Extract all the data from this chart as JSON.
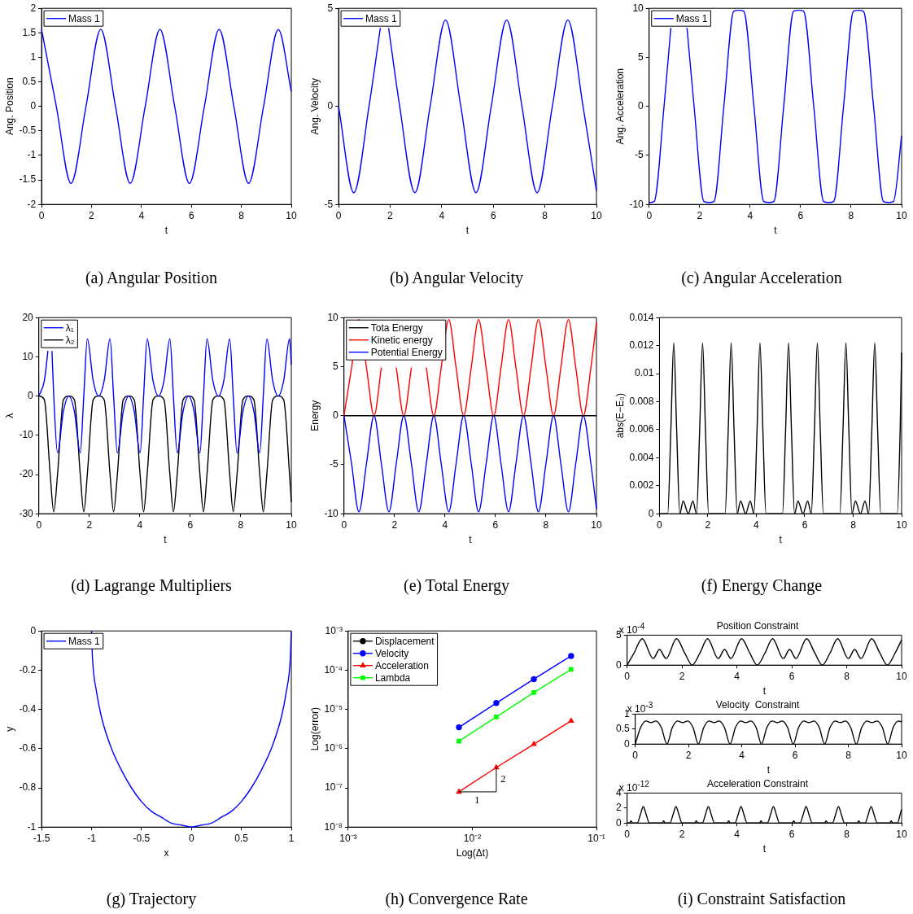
{
  "chart_data": [
    {
      "type": "line",
      "subtitle": "(a)  Angular Position",
      "xlabel": "t",
      "ylabel": "Ang. Position",
      "xlim": [
        0,
        10
      ],
      "xticks": [
        0,
        2,
        4,
        6,
        8,
        10
      ],
      "ylim": [
        -2,
        2
      ],
      "yticks": [
        -2,
        -1.5,
        -1,
        -0.5,
        0,
        0.5,
        1,
        1.5,
        2
      ],
      "legend": "top left",
      "x": [
        0,
        0.59,
        1.18,
        1.78,
        2.37,
        2.96,
        3.55,
        4.15,
        4.74,
        5.33,
        5.92,
        6.52,
        7.11,
        7.7,
        8.29,
        8.89,
        9.48,
        10
      ],
      "series": [
        {
          "name": "Mass 1",
          "color": "#0000ff",
          "values": [
            1.57,
            0,
            -1.57,
            0,
            1.57,
            0,
            -1.57,
            0,
            1.57,
            0,
            -1.57,
            0,
            1.57,
            0,
            -1.57,
            0,
            1.57,
            0.3
          ]
        }
      ]
    },
    {
      "type": "line",
      "subtitle": "(b)  Angular Velocity",
      "xlabel": "t",
      "ylabel": "Ang. Velocity",
      "xlim": [
        0,
        10
      ],
      "xticks": [
        0,
        2,
        4,
        6,
        8,
        10
      ],
      "ylim": [
        -5,
        5
      ],
      "yticks": [
        -5,
        0,
        5
      ],
      "legend": "top left",
      "x": [
        0,
        0.59,
        1.18,
        1.62,
        1.78,
        1.94,
        2.37,
        2.96,
        3.55,
        4.15,
        4.74,
        5.33,
        5.92,
        6.52,
        7.11,
        7.7,
        8.29,
        8.89,
        9.48,
        10
      ],
      "series": [
        {
          "name": "Mass 1",
          "color": "#0000ff",
          "values": [
            0,
            -4.4,
            0,
            4,
            null,
            4,
            0,
            -4.4,
            0,
            4.4,
            0,
            -4.4,
            0,
            4.4,
            0,
            -4.4,
            0,
            4.4,
            0,
            -4.3
          ]
        }
      ]
    },
    {
      "type": "line",
      "subtitle": "(c)  Angular Acceleration",
      "xlabel": "t",
      "ylabel": "Ang. Acceleration",
      "xlim": [
        0,
        10
      ],
      "xticks": [
        0,
        2,
        4,
        6,
        8,
        10
      ],
      "ylim": [
        -10,
        10
      ],
      "yticks": [
        -10,
        -5,
        0,
        5,
        10
      ],
      "legend": "top left",
      "x": [
        0,
        0.2,
        0.59,
        0.86,
        1.18,
        1.5,
        1.78,
        2.17,
        2.37,
        2.57,
        2.96,
        3.35,
        3.55,
        3.75,
        4.15,
        4.54,
        4.74,
        4.94,
        5.33,
        5.72,
        5.92,
        6.12,
        6.52,
        6.91,
        7.11,
        7.31,
        7.7,
        8.09,
        8.29,
        8.49,
        8.89,
        9.28,
        9.48,
        9.68,
        10
      ],
      "series": [
        {
          "name": "Mass 1",
          "color": "#0000ff",
          "values": [
            -9.8,
            -9.7,
            0,
            8,
            null,
            8,
            0,
            -9.7,
            -9.8,
            -9.7,
            0,
            9.7,
            9.8,
            9.7,
            0,
            -9.7,
            -9.8,
            -9.7,
            0,
            9.7,
            9.8,
            9.7,
            0,
            -9.7,
            -9.8,
            -9.7,
            0,
            9.7,
            9.8,
            9.7,
            0,
            -9.7,
            -9.8,
            -9.7,
            -3
          ]
        }
      ]
    },
    {
      "type": "line",
      "subtitle": "(d)  Lagrange Multipliers",
      "xlabel": "t",
      "ylabel": "λ",
      "xlim": [
        0,
        10
      ],
      "xticks": [
        0,
        2,
        4,
        6,
        8,
        10
      ],
      "ylim": [
        -30,
        20
      ],
      "yticks": [
        -30,
        -20,
        -10,
        0,
        10,
        20
      ],
      "legend": "top left",
      "x": [
        0,
        0.22,
        0.45,
        0.59,
        0.74,
        0.97,
        1.19,
        1.41,
        1.64,
        1.78,
        1.92,
        2.15,
        2.37,
        2.59,
        2.82,
        2.96,
        3.11,
        3.34,
        3.56,
        3.78,
        4.01,
        4.15,
        4.29,
        4.52,
        4.74,
        4.96,
        5.19,
        5.33,
        5.48,
        5.71,
        5.93,
        6.15,
        6.38,
        6.52,
        6.66,
        6.89,
        7.11,
        7.33,
        7.56,
        7.7,
        7.85,
        8.08,
        8.3,
        8.52,
        8.75,
        8.89,
        9.03,
        9.26,
        9.48,
        9.7,
        9.93,
        10
      ],
      "series": [
        {
          "name": "λ₁",
          "color": "#0000ff",
          "x": [
            0,
            0.22,
            0.36,
            0.45,
            0.52,
            0.59,
            0.74,
            0.97,
            1.19,
            1.41,
            1.64,
            1.78,
            1.92,
            2.15,
            2.37,
            2.59,
            2.82,
            2.96,
            3.11,
            3.34,
            3.56,
            3.78,
            4.01,
            4.15,
            4.29,
            4.52,
            4.74,
            4.96,
            5.19,
            5.33,
            5.48,
            5.71,
            5.93,
            6.15,
            6.38,
            6.52,
            6.66,
            6.89,
            7.11,
            7.33,
            7.56,
            7.7,
            7.85,
            8.08,
            8.3,
            8.52,
            8.75,
            8.89,
            9.03,
            9.26,
            9.48,
            9.7,
            9.93,
            10
          ],
          "values": [
            0,
            4,
            11.5,
            null,
            11.5,
            0,
            -14.5,
            -4,
            0,
            -4,
            -14.5,
            0,
            14.6,
            4,
            0,
            4,
            14.6,
            0,
            -14.5,
            -4,
            0,
            -4,
            -14.5,
            0,
            14.6,
            4,
            0,
            4,
            14.6,
            0,
            -14.5,
            -4,
            0,
            -4,
            -14.5,
            0,
            14.6,
            4,
            0,
            4,
            14.6,
            0,
            -14.5,
            -4,
            0,
            -4,
            -14.5,
            0,
            14.6,
            4,
            0,
            4,
            14.6,
            8
          ]
        },
        {
          "name": "λ₂",
          "color": "#000000",
          "values": [
            0,
            -1,
            -20,
            -29.5,
            -20,
            -1,
            0,
            -1,
            -20,
            -29.5,
            -20,
            -1,
            0,
            -1,
            -20,
            -29.5,
            -20,
            -1,
            0,
            -1,
            -20,
            -29.5,
            -20,
            -1,
            0,
            -1,
            -20,
            -29.5,
            -20,
            -1,
            0,
            -1,
            -20,
            -29.5,
            -20,
            -1,
            0,
            -1,
            -20,
            -29.5,
            -20,
            -1,
            0,
            -1,
            -20,
            -29.5,
            -20,
            -1,
            0,
            -1,
            -20,
            -27
          ]
        }
      ]
    },
    {
      "type": "line",
      "subtitle": "(e)  Total Energy",
      "xlabel": "t",
      "ylabel": "Energy",
      "xlim": [
        0,
        10
      ],
      "xticks": [
        0,
        2,
        4,
        6,
        8,
        10
      ],
      "ylim": [
        -10,
        10
      ],
      "yticks": [
        -10,
        -5,
        0,
        5,
        10
      ],
      "legend": "top left",
      "x": [
        0,
        0.3,
        0.59,
        0.89,
        1.19,
        1.48,
        1.78,
        2.07,
        2.37,
        2.67,
        2.96,
        3.26,
        3.56,
        3.85,
        4.15,
        4.44,
        4.74,
        5.04,
        5.33,
        5.63,
        5.93,
        6.22,
        6.52,
        6.81,
        7.11,
        7.41,
        7.7,
        8,
        8.3,
        8.59,
        8.89,
        9.18,
        9.48,
        9.78,
        10
      ],
      "series": [
        {
          "name": "Tota Energy",
          "color": "#000000",
          "values": [
            0,
            0,
            0,
            0,
            0,
            0,
            0,
            0,
            0,
            0,
            0,
            0,
            0,
            0,
            0,
            0,
            0,
            0,
            0,
            0,
            0,
            0,
            0,
            0,
            0,
            0,
            0,
            0,
            0,
            0,
            0,
            0,
            0,
            0,
            0
          ]
        },
        {
          "name": "Kinetic energy",
          "color": "#ff0000",
          "values": [
            0,
            4.9,
            9.8,
            4.9,
            0,
            4.9,
            null,
            4.9,
            0,
            4.9,
            null,
            4.9,
            0,
            4.9,
            9.8,
            4.9,
            0,
            4.9,
            9.8,
            4.9,
            0,
            4.9,
            9.8,
            4.9,
            0,
            4.9,
            9.8,
            4.9,
            0,
            4.9,
            9.8,
            4.9,
            0,
            4.9,
            9.5
          ]
        },
        {
          "name": "Potential Energy",
          "color": "#0000ff",
          "values": [
            0,
            -4.9,
            -9.8,
            -4.9,
            0,
            -4.9,
            -9.8,
            -4.9,
            0,
            -4.9,
            -9.8,
            -4.9,
            0,
            -4.9,
            -9.8,
            -4.9,
            0,
            -4.9,
            -9.8,
            -4.9,
            0,
            -4.9,
            -9.8,
            -4.9,
            0,
            -4.9,
            -9.8,
            -4.9,
            0,
            -4.9,
            -9.8,
            -4.9,
            0,
            -4.9,
            -9.5
          ]
        }
      ]
    },
    {
      "type": "line",
      "subtitle": "(f)  Energy Change",
      "xlabel": "t",
      "ylabel": "abs(E−E₀)",
      "xlim": [
        0,
        10
      ],
      "xticks": [
        0,
        2,
        4,
        6,
        8,
        10
      ],
      "ylim": [
        0,
        0.014
      ],
      "yticks": [
        0,
        0.002,
        0.004,
        0.006,
        0.008,
        0.01,
        0.012,
        0.014
      ],
      "x": [
        0,
        0.34,
        0.47,
        0.59,
        0.71,
        0.84,
        0.98,
        1.19,
        1.38,
        1.53,
        1.66,
        1.78,
        1.9,
        2.03,
        2.37,
        2.71,
        2.84,
        2.96,
        3.08,
        3.21,
        3.35,
        3.56,
        3.75,
        3.9,
        4.03,
        4.15,
        4.27,
        4.4,
        4.74,
        5.08,
        5.21,
        5.33,
        5.45,
        5.58,
        5.72,
        5.93,
        6.12,
        6.27,
        6.4,
        6.52,
        6.64,
        6.77,
        7.11,
        7.45,
        7.58,
        7.7,
        7.82,
        7.95,
        8.09,
        8.3,
        8.49,
        8.64,
        8.77,
        8.89,
        9.01,
        9.14,
        9.48,
        9.82,
        9.94,
        10
      ],
      "series": [
        {
          "color": "#000000",
          "values": [
            0,
            0,
            0.006,
            0.0122,
            0.006,
            0,
            0.0009,
            0,
            0.0009,
            0,
            0.006,
            0.0122,
            0.006,
            0,
            0,
            0,
            0.006,
            0.0122,
            0.006,
            0,
            0.0009,
            0,
            0.0009,
            0,
            0.006,
            0.0122,
            0.006,
            0,
            0,
            0,
            0.006,
            0.0122,
            0.006,
            0,
            0.0009,
            0,
            0.0009,
            0,
            0.006,
            0.0122,
            0.006,
            0,
            0,
            0,
            0.006,
            0.0122,
            0.006,
            0,
            0.0009,
            0,
            0.0009,
            0,
            0.006,
            0.0122,
            0.006,
            0,
            0,
            0,
            0.006,
            0.0115
          ]
        }
      ]
    },
    {
      "type": "line",
      "subtitle": "(g)  Trajectory",
      "xlabel": "x",
      "ylabel": "y",
      "xlim": [
        -1.5,
        1
      ],
      "xticks": [
        -1.5,
        -1,
        -0.5,
        0,
        0.5,
        1
      ],
      "ylim": [
        -1,
        0
      ],
      "yticks": [
        -1,
        -0.8,
        -0.6,
        -0.4,
        -0.2,
        0
      ],
      "legend": "top left",
      "x": [
        -1,
        -0.99,
        -0.95,
        -0.9,
        -0.8,
        -0.7,
        -0.6,
        -0.5,
        -0.4,
        -0.3,
        -0.2,
        -0.1,
        0,
        0.1,
        0.2,
        0.3,
        0.4,
        0.5,
        0.6,
        0.7,
        0.8,
        0.9,
        0.95,
        0.99,
        1
      ],
      "series": [
        {
          "name": "Mass 1",
          "color": "#0000ff",
          "values": [
            0,
            -0.14,
            -0.31,
            -0.44,
            -0.6,
            -0.71,
            -0.8,
            -0.87,
            -0.92,
            -0.95,
            -0.98,
            -0.99,
            -1,
            -0.99,
            -0.98,
            -0.95,
            -0.92,
            -0.87,
            -0.8,
            -0.71,
            -0.6,
            -0.44,
            -0.31,
            -0.14,
            0
          ]
        }
      ]
    },
    {
      "type": "line",
      "subtitle": "(h)  Convergence Rate",
      "xlabel": "Log(Δt)",
      "ylabel": "Log(error)",
      "log": "xy",
      "legend": "top left",
      "xlim": [
        0.001,
        0.1
      ],
      "xticks": [
        {
          "value": 0.001,
          "label": "10⁻³"
        },
        {
          "value": 0.01,
          "label": "10⁻²"
        },
        {
          "value": 0.1,
          "label": "10⁻¹"
        }
      ],
      "ylim": [
        1e-08,
        0.001
      ],
      "yticks": [
        {
          "value": 1e-08,
          "label": "10⁻⁸"
        },
        {
          "value": 1e-07,
          "label": "10⁻⁷"
        },
        {
          "value": 1e-06,
          "label": "10⁻⁶"
        },
        {
          "value": 1e-05,
          "label": "10⁻⁵"
        },
        {
          "value": 0.0001,
          "label": "10⁻⁴"
        },
        {
          "value": 0.001,
          "label": "10⁻³"
        }
      ],
      "x": [
        0.0078,
        0.0156,
        0.0313,
        0.0625
      ],
      "annotations": [
        {
          "text": "2",
          "x": 0.0156,
          "y": 3.3e-07
        },
        {
          "text": "1",
          "x": 0.0078,
          "y": 7.9e-08
        }
      ],
      "series": [
        {
          "name": "Displacement",
          "color": "#000000",
          "marker": "circle",
          "values": [
            null,
            null,
            null,
            null
          ]
        },
        {
          "name": "Velocity",
          "color": "#0000ff",
          "marker": "circle",
          "values": [
            3.5e-06,
            1.45e-05,
            5.9e-05,
            0.00023
          ]
        },
        {
          "name": "Acceleration",
          "color": "#ff0000",
          "marker": "triangle",
          "values": [
            7.9e-08,
            3.3e-07,
            1.3e-06,
            5.1e-06
          ]
        },
        {
          "name": "Lambda",
          "color": "#00ff00",
          "marker": "square",
          "values": [
            1.55e-06,
            6.4e-06,
            2.7e-05,
            0.000105
          ]
        }
      ]
    },
    {
      "type": "line",
      "title": "Position Constraint",
      "xlabel": "t",
      "xlim": [
        0,
        10
      ],
      "xticks": [
        0,
        2,
        4,
        6,
        8,
        10
      ],
      "ylim": [
        0,
        5
      ],
      "yticks": [
        0,
        5
      ],
      "annotations": [
        "x 10$^{-4}$"
      ],
      "x": [
        0,
        0.25,
        0.55,
        0.95,
        1.18,
        1.42,
        1.8,
        2.1,
        2.37,
        2.65,
        2.93,
        3.32,
        3.55,
        3.78,
        4.17,
        4.47,
        4.74,
        5.02,
        5.3,
        5.69,
        5.92,
        6.15,
        6.54,
        6.84,
        7.11,
        7.39,
        7.67,
        8.06,
        8.29,
        8.52,
        8.91,
        9.21,
        9.48,
        9.76,
        10
      ],
      "series": [
        {
          "color": "#000000",
          "values": [
            0,
            2,
            4.4,
            1.1,
            2.6,
            1.1,
            4.4,
            2,
            0,
            2,
            4.4,
            1.1,
            2.6,
            1.1,
            4.4,
            2,
            0,
            2,
            4.4,
            1.1,
            2.6,
            1.1,
            4.4,
            2,
            0,
            2,
            4.4,
            1.1,
            2.6,
            1.1,
            4.4,
            2,
            0,
            2,
            4.2
          ]
        }
      ]
    },
    {
      "type": "line",
      "title": "Velocity  Constraint",
      "xlabel": "t",
      "xlim": [
        0,
        10
      ],
      "xticks": [
        0,
        2,
        4,
        6,
        8,
        10
      ],
      "ylim": [
        0,
        1
      ],
      "yticks": [
        0,
        0.5,
        1
      ],
      "annotations": [
        "x 10$^{-3}$"
      ],
      "x": [
        0,
        0.2,
        0.4,
        0.59,
        0.78,
        0.98,
        1.19,
        1.39,
        1.59,
        1.78,
        1.97,
        2.17,
        2.37,
        2.57,
        2.77,
        2.96,
        3.15,
        3.35,
        3.56,
        3.76,
        3.96,
        4.15,
        4.34,
        4.54,
        4.74,
        4.94,
        5.14,
        5.33,
        5.52,
        5.72,
        5.93,
        6.13,
        6.33,
        6.52,
        6.71,
        6.91,
        7.11,
        7.31,
        7.51,
        7.7,
        7.89,
        8.09,
        8.3,
        8.5,
        8.7,
        8.89,
        9.08,
        9.28,
        9.48,
        9.68,
        9.88,
        10
      ],
      "series": [
        {
          "color": "#000000",
          "values": [
            0,
            0.55,
            0.77,
            0.72,
            0.77,
            0.55,
            0,
            0.55,
            0.77,
            0.72,
            0.77,
            0.55,
            0,
            0.55,
            0.77,
            0.72,
            0.77,
            0.55,
            0,
            0.55,
            0.77,
            0.72,
            0.77,
            0.55,
            0,
            0.55,
            0.77,
            0.72,
            0.77,
            0.55,
            0,
            0.55,
            0.77,
            0.72,
            0.77,
            0.55,
            0,
            0.55,
            0.77,
            0.72,
            0.77,
            0.55,
            0,
            0.55,
            0.77,
            0.72,
            0.77,
            0.55,
            0,
            0.55,
            0.77,
            0.74
          ]
        }
      ]
    },
    {
      "type": "line",
      "title": "Acceleration Constraint",
      "subtitle": "(i)  Constraint Satisfaction",
      "xlabel": "t",
      "xlim": [
        0,
        10
      ],
      "xticks": [
        0,
        2,
        4,
        6,
        8,
        10
      ],
      "ylim": [
        0,
        4
      ],
      "yticks": [
        0,
        2,
        4
      ],
      "annotations": [
        "x 10$^{-12}$"
      ],
      "x": [
        0,
        0.09,
        0.14,
        0.19,
        0.37,
        0.49,
        0.59,
        0.69,
        0.81,
        1.28,
        1.33,
        1.38,
        1.56,
        1.68,
        1.78,
        1.88,
        2,
        2.47,
        2.52,
        2.57,
        2.74,
        2.86,
        2.96,
        3.06,
        3.18,
        3.65,
        3.7,
        3.75,
        3.93,
        4.05,
        4.15,
        4.25,
        4.37,
        4.83,
        4.88,
        4.93,
        5.11,
        5.23,
        5.33,
        5.43,
        5.55,
        6.02,
        6.07,
        6.12,
        6.3,
        6.42,
        6.52,
        6.62,
        6.74,
        7.2,
        7.25,
        7.3,
        7.48,
        7.6,
        7.7,
        7.8,
        7.92,
        8.39,
        8.44,
        8.49,
        8.67,
        8.79,
        8.89,
        8.99,
        9.11,
        9.57,
        9.62,
        9.67,
        9.85,
        9.95,
        10
      ],
      "series": [
        {
          "color": "#000000",
          "values": [
            0,
            0,
            0.3,
            0,
            0,
            1.2,
            2.2,
            1.2,
            0,
            0,
            0.3,
            0,
            0,
            1.2,
            2.2,
            1.2,
            0,
            0,
            0.3,
            0,
            0,
            1.2,
            2.2,
            1.2,
            0,
            0,
            0.3,
            0,
            0,
            1.2,
            2.2,
            1.2,
            0,
            0,
            0.3,
            0,
            0,
            1.2,
            2.2,
            1.2,
            0,
            0,
            0.3,
            0,
            0,
            1.2,
            2.2,
            1.2,
            0,
            0,
            0.3,
            0,
            0,
            1.2,
            2.2,
            1.2,
            0,
            0,
            0.3,
            0,
            0,
            1.2,
            2.2,
            1.2,
            0,
            0,
            0.3,
            0,
            0,
            1.2,
            1.8
          ]
        }
      ]
    }
  ]
}
